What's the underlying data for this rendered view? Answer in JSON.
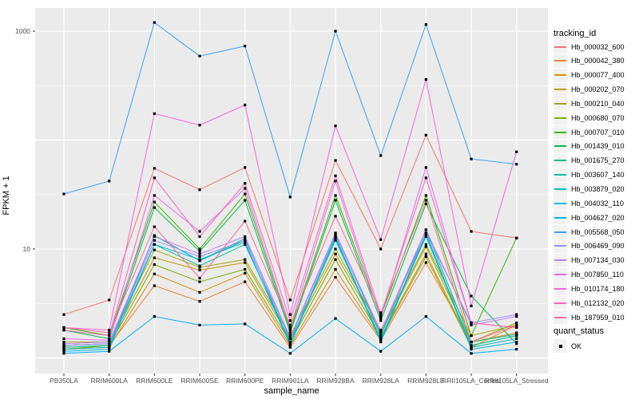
{
  "figure": {
    "y_axis_title": "FPKM + 1",
    "x_axis_title": "sample_name",
    "line_legend_title": "tracking_id",
    "quant_legend_title": "quant_status",
    "quant_legend_items": [
      {
        "label": "OK",
        "glyph": "black-square-point"
      }
    ],
    "colors": {
      "panel_background": "#EBEBEB",
      "gridline": "#FFFFFF",
      "tick_text": "#4D4D4D",
      "point": "#000000",
      "legend_key_background": "#F2F2F2"
    }
  },
  "chart_data": {
    "type": "line",
    "title": "",
    "xlabel": "sample_name",
    "ylabel": "FPKM + 1",
    "y_scale": "log10",
    "ylim": [
      0.72,
      1630
    ],
    "grid": "on",
    "legend_position": "right",
    "yticks": [
      {
        "label": "1000",
        "value": 1000
      },
      {
        "label": "10",
        "value": 10
      }
    ],
    "categories": [
      "PB350LA",
      "RRIM600LA",
      "RRIM600LE",
      "RRIM600SE",
      "RRIM600PE",
      "RRIM901LA",
      "RRIM928BA",
      "RRIM928LA",
      "RRIM928LE",
      "RRII105LA_Control",
      "RRII105LA_Stressed"
    ],
    "series": [
      {
        "name": "Hb_000032_600",
        "color": "#F8766D",
        "values": [
          2.5,
          3.4,
          55,
          35,
          56,
          3.4,
          65,
          10,
          111,
          14.5,
          12.6
        ]
      },
      {
        "name": "Hb_000042_380",
        "color": "#EA8331",
        "values": [
          1.25,
          1.3,
          4.6,
          3.3,
          5.0,
          1.25,
          5.5,
          1.45,
          7.5,
          1.4,
          1.7
        ]
      },
      {
        "name": "Hb_000077_400",
        "color": "#D89000",
        "values": [
          1.2,
          1.25,
          5.9,
          4.0,
          6.0,
          1.3,
          6.5,
          1.5,
          8.5,
          1.25,
          2.0
        ]
      },
      {
        "name": "Hb_000202_070",
        "color": "#C09B00",
        "values": [
          1.3,
          1.35,
          8.3,
          6.4,
          7.5,
          1.5,
          9.0,
          1.7,
          10.5,
          1.4,
          2.1
        ]
      },
      {
        "name": "Hb_000210_040",
        "color": "#A3A500",
        "values": [
          1.4,
          1.4,
          9.8,
          6.8,
          8.0,
          1.6,
          10,
          1.8,
          11,
          1.6,
          2.0
        ]
      },
      {
        "name": "Hb_000680_070",
        "color": "#7CAE00",
        "values": [
          1.2,
          1.3,
          7.2,
          5.0,
          6.5,
          1.4,
          8.0,
          1.55,
          9.0,
          1.3,
          1.6
        ]
      },
      {
        "name": "Hb_000707_010",
        "color": "#39B600",
        "values": [
          1.9,
          1.6,
          27,
          10,
          32,
          1.8,
          31,
          2.4,
          31,
          1.6,
          12.6
        ]
      },
      {
        "name": "Hb_001439_010",
        "color": "#00BB4E",
        "values": [
          1.8,
          1.5,
          24,
          9.5,
          28,
          1.7,
          28,
          2.2,
          26,
          3.7,
          1.35
        ]
      },
      {
        "name": "Hb_001675_270",
        "color": "#00BF7D",
        "values": [
          1.3,
          1.35,
          13.3,
          7.8,
          12,
          1.5,
          14,
          1.6,
          15,
          1.4,
          1.65
        ]
      },
      {
        "name": "Hb_003607_140",
        "color": "#00C1A3",
        "values": [
          1.25,
          1.3,
          11,
          7.0,
          11,
          1.4,
          12,
          1.5,
          13,
          1.3,
          1.6
        ]
      },
      {
        "name": "Hb_003879_020",
        "color": "#00BFC4",
        "values": [
          1.2,
          1.25,
          13.3,
          7.8,
          12.5,
          1.35,
          13,
          1.45,
          14,
          1.25,
          1.5
        ]
      },
      {
        "name": "Hb_004032_110",
        "color": "#00BAE0",
        "values": [
          1.15,
          1.2,
          11,
          8.0,
          11.5,
          1.3,
          12.5,
          1.4,
          13.5,
          1.2,
          1.4
        ]
      },
      {
        "name": "Hb_004627_020",
        "color": "#00B0F6",
        "values": [
          1.1,
          1.15,
          2.4,
          2.0,
          2.05,
          1.1,
          2.3,
          1.15,
          2.4,
          1.1,
          1.2
        ]
      },
      {
        "name": "Hb_005568_050",
        "color": "#35A2FF",
        "values": [
          32,
          42,
          1200,
          590,
          730,
          30,
          1000,
          72,
          1150,
          67,
          60
        ]
      },
      {
        "name": "Hb_006469_090",
        "color": "#9590FF",
        "values": [
          1.3,
          1.35,
          12,
          8.5,
          12,
          1.5,
          13.5,
          1.7,
          14,
          2.1,
          2.5
        ]
      },
      {
        "name": "Hb_007134_030",
        "color": "#C77CFF",
        "values": [
          1.35,
          1.4,
          13,
          9.0,
          13,
          1.55,
          14,
          1.75,
          15,
          2.0,
          2.4
        ]
      },
      {
        "name": "Hb_007850_110",
        "color": "#E76BF3",
        "values": [
          1.5,
          1.45,
          31,
          14.5,
          36,
          1.9,
          42,
          2.3,
          56,
          2.1,
          1.9
        ]
      },
      {
        "name": "Hb_010174_180",
        "color": "#FA62DB",
        "values": [
          1.9,
          1.8,
          175,
          137,
          210,
          2.5,
          135,
          12.2,
          360,
          3.0,
          78
        ]
      },
      {
        "name": "Hb_012132_020",
        "color": "#FF62BC",
        "values": [
          1.8,
          1.6,
          45,
          13,
          40,
          2.2,
          47,
          2.5,
          45,
          2.1,
          1.9
        ]
      },
      {
        "name": "Hb_187959_010",
        "color": "#FF6A98",
        "values": [
          1.9,
          1.7,
          16,
          5.4,
          18,
          2.0,
          20,
          2.6,
          28,
          1.4,
          2.0
        ]
      }
    ]
  }
}
